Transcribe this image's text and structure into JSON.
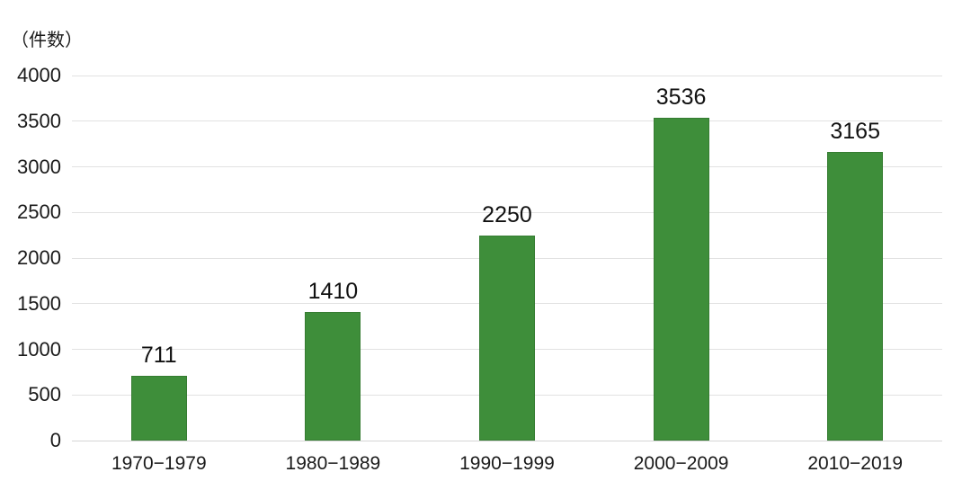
{
  "unit_label": "（件数）",
  "chart_data": {
    "type": "bar",
    "title": "",
    "xlabel": "",
    "ylabel": "（件数）",
    "categories": [
      "1970−1979",
      "1980−1989",
      "1990−1999",
      "2000−2009",
      "2010−2019"
    ],
    "values": [
      711,
      1410,
      2250,
      3536,
      3165
    ],
    "value_labels": [
      "711",
      "1410",
      "2250",
      "3536",
      "3165"
    ],
    "ylim": [
      0,
      4000
    ],
    "ytick_step": 500,
    "yticks": [
      0,
      500,
      1000,
      1500,
      2000,
      2500,
      3000,
      3500,
      4000
    ],
    "grid": "horizontal",
    "legend_position": "none",
    "colors": {
      "bar_fill": "#3e8e3a",
      "bar_border": "#357c31",
      "gridline": "#e2e2e2",
      "axis_line": "#d6d6d6",
      "text": "#1a1a1a",
      "value_text": "#111111",
      "background": "#ffffff"
    }
  }
}
